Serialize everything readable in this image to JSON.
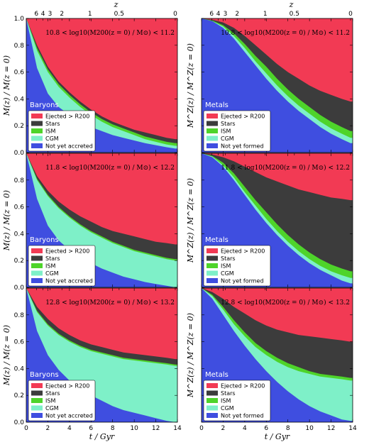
{
  "chart_data": {
    "type": "area",
    "stacked": true,
    "xlabel": "t / Gyr",
    "top_axis_label": "z",
    "xlim": [
      0,
      14
    ],
    "ylim": [
      0,
      1
    ],
    "x_ticks": [
      "0",
      "2",
      "4",
      "6",
      "8",
      "10",
      "12",
      "14"
    ],
    "y_ticks": [
      "0.0",
      "0.2",
      "0.4",
      "0.6",
      "0.8",
      "1.0"
    ],
    "z_ticks": [
      {
        "label": "6",
        "t": 0.94
      },
      {
        "label": "4",
        "t": 1.55
      },
      {
        "label": "3",
        "t": 2.2
      },
      {
        "label": "2",
        "t": 3.3
      },
      {
        "label": "1",
        "t": 5.9
      },
      {
        "label": "0.5",
        "t": 8.6
      },
      {
        "label": "0",
        "t": 13.8
      }
    ],
    "colors": {
      "not_yet": "#3f4ee0",
      "cgm": "#7ef0c8",
      "ism": "#4ed42a",
      "stars": "#3c3c3c",
      "ejected": "#f23a54"
    },
    "t": [
      0,
      1,
      2,
      3,
      4,
      5,
      6,
      7,
      8,
      9,
      10,
      11,
      12,
      13,
      13.8
    ],
    "panels": [
      {
        "kind": "Baryons",
        "column": 0,
        "row": 0,
        "ylabel": "M(z) / M(z = 0)",
        "mass_range": "10.8 < log10(M200(z = 0) / M⊙) < 11.2",
        "legend": [
          "Ejected > R200",
          "Stars",
          "ISM",
          "CGM",
          "Not yet accreted"
        ],
        "series": {
          "not_yet": [
            1,
            0.63,
            0.44,
            0.34,
            0.28,
            0.23,
            0.19,
            0.16,
            0.13,
            0.11,
            0.09,
            0.07,
            0.055,
            0.04,
            0.03
          ],
          "cgm": [
            1,
            0.76,
            0.6,
            0.49,
            0.41,
            0.34,
            0.28,
            0.23,
            0.19,
            0.16,
            0.13,
            0.1,
            0.08,
            0.06,
            0.05
          ],
          "ism": [
            1,
            0.78,
            0.62,
            0.51,
            0.43,
            0.36,
            0.3,
            0.25,
            0.21,
            0.18,
            0.15,
            0.12,
            0.1,
            0.08,
            0.07
          ],
          "stars": [
            1,
            0.8,
            0.64,
            0.53,
            0.45,
            0.38,
            0.32,
            0.27,
            0.23,
            0.2,
            0.17,
            0.15,
            0.13,
            0.11,
            0.1
          ]
        }
      },
      {
        "kind": "Metals",
        "column": 1,
        "row": 0,
        "ylabel": "M^Z(z) / M^Z(z = 0)",
        "mass_range": "10.8 < log10(M200(z = 0) / M⊙) < 11.2",
        "legend": [
          "Ejected > R200",
          "Stars",
          "ISM",
          "CGM",
          "Not yet formed"
        ],
        "series": {
          "not_yet": [
            1,
            0.98,
            0.93,
            0.85,
            0.75,
            0.65,
            0.55,
            0.46,
            0.38,
            0.31,
            0.25,
            0.19,
            0.14,
            0.1,
            0.07
          ],
          "cgm": [
            1,
            0.98,
            0.94,
            0.87,
            0.78,
            0.68,
            0.59,
            0.5,
            0.42,
            0.35,
            0.29,
            0.23,
            0.18,
            0.14,
            0.11
          ],
          "ism": [
            1,
            0.985,
            0.95,
            0.89,
            0.81,
            0.72,
            0.64,
            0.55,
            0.47,
            0.4,
            0.34,
            0.28,
            0.23,
            0.19,
            0.16
          ],
          "stars": [
            1,
            0.99,
            0.97,
            0.93,
            0.87,
            0.8,
            0.73,
            0.66,
            0.6,
            0.55,
            0.5,
            0.46,
            0.43,
            0.4,
            0.38
          ]
        }
      },
      {
        "kind": "Baryons",
        "column": 0,
        "row": 1,
        "ylabel": "M(z) / M(z = 0)",
        "mass_range": "11.8 < log10(M200(z = 0) / M⊙) < 12.2",
        "legend": [
          "Ejected > R200",
          "Stars",
          "ISM",
          "CGM",
          "Not yet accreted"
        ],
        "series": {
          "not_yet": [
            1,
            0.66,
            0.46,
            0.35,
            0.28,
            0.22,
            0.18,
            0.14,
            0.11,
            0.08,
            0.06,
            0.04,
            0.025,
            0.012,
            0.0
          ],
          "cgm": [
            1,
            0.8,
            0.68,
            0.59,
            0.52,
            0.46,
            0.41,
            0.37,
            0.33,
            0.3,
            0.27,
            0.25,
            0.23,
            0.21,
            0.2
          ],
          "ism": [
            1,
            0.81,
            0.69,
            0.6,
            0.53,
            0.47,
            0.42,
            0.38,
            0.34,
            0.31,
            0.28,
            0.26,
            0.24,
            0.22,
            0.21
          ],
          "stars": [
            1,
            0.83,
            0.72,
            0.64,
            0.58,
            0.53,
            0.49,
            0.45,
            0.42,
            0.4,
            0.38,
            0.36,
            0.34,
            0.33,
            0.32
          ]
        }
      },
      {
        "kind": "Metals",
        "column": 1,
        "row": 1,
        "ylabel": "M^Z(z) / M^Z(z = 0)",
        "mass_range": "11.8 < log10(M200(z = 0) / M⊙) < 12.2",
        "legend": [
          "Ejected > R200",
          "Stars",
          "ISM",
          "CGM",
          "Not yet formed"
        ],
        "series": {
          "not_yet": [
            1,
            0.97,
            0.9,
            0.8,
            0.69,
            0.58,
            0.48,
            0.39,
            0.31,
            0.24,
            0.18,
            0.13,
            0.09,
            0.05,
            0.03
          ],
          "cgm": [
            1,
            0.975,
            0.91,
            0.82,
            0.71,
            0.61,
            0.51,
            0.42,
            0.34,
            0.27,
            0.21,
            0.16,
            0.12,
            0.09,
            0.07
          ],
          "ism": [
            1,
            0.98,
            0.93,
            0.85,
            0.75,
            0.65,
            0.56,
            0.47,
            0.39,
            0.32,
            0.26,
            0.21,
            0.17,
            0.14,
            0.12
          ],
          "stars": [
            1,
            0.99,
            0.97,
            0.94,
            0.9,
            0.86,
            0.82,
            0.79,
            0.76,
            0.73,
            0.71,
            0.69,
            0.67,
            0.66,
            0.65
          ]
        }
      },
      {
        "kind": "Baryons",
        "column": 0,
        "row": 2,
        "ylabel": "M(z) / M(z = 0)",
        "mass_range": "12.8 < log10(M200(z = 0) / M⊙) < 13.2",
        "legend": [
          "Ejected > R200",
          "Stars",
          "ISM",
          "CGM",
          "Not yet accreted"
        ],
        "series": {
          "not_yet": [
            1,
            0.68,
            0.5,
            0.39,
            0.31,
            0.25,
            0.2,
            0.16,
            0.12,
            0.09,
            0.07,
            0.05,
            0.03,
            0.01,
            0.0
          ],
          "cgm": [
            1,
            0.82,
            0.72,
            0.65,
            0.6,
            0.56,
            0.53,
            0.51,
            0.49,
            0.47,
            0.46,
            0.45,
            0.44,
            0.43,
            0.42
          ],
          "ism": [
            1,
            0.83,
            0.73,
            0.66,
            0.61,
            0.57,
            0.54,
            0.52,
            0.5,
            0.48,
            0.47,
            0.46,
            0.45,
            0.44,
            0.43
          ],
          "stars": [
            1,
            0.86,
            0.77,
            0.7,
            0.65,
            0.61,
            0.58,
            0.56,
            0.54,
            0.52,
            0.51,
            0.5,
            0.49,
            0.48,
            0.47
          ]
        }
      },
      {
        "kind": "Metals",
        "column": 1,
        "row": 2,
        "ylabel": "M^Z(z) / M^Z(z = 0)",
        "mass_range": "12.8 < log10(M200(z = 0) / M⊙) < 13.2",
        "legend": [
          "Ejected > R200",
          "Stars",
          "ISM",
          "CGM",
          "Not yet formed"
        ],
        "series": {
          "not_yet": [
            1,
            0.92,
            0.8,
            0.68,
            0.57,
            0.47,
            0.38,
            0.3,
            0.23,
            0.17,
            0.12,
            0.08,
            0.05,
            0.02,
            0.01
          ],
          "cgm": [
            1,
            0.94,
            0.84,
            0.73,
            0.64,
            0.56,
            0.5,
            0.45,
            0.41,
            0.38,
            0.36,
            0.34,
            0.33,
            0.32,
            0.31
          ],
          "ism": [
            1,
            0.95,
            0.86,
            0.76,
            0.67,
            0.59,
            0.53,
            0.48,
            0.44,
            0.41,
            0.38,
            0.36,
            0.35,
            0.34,
            0.33
          ],
          "stars": [
            1,
            0.97,
            0.92,
            0.86,
            0.81,
            0.76,
            0.72,
            0.69,
            0.67,
            0.65,
            0.64,
            0.63,
            0.62,
            0.61,
            0.6
          ]
        }
      }
    ]
  }
}
